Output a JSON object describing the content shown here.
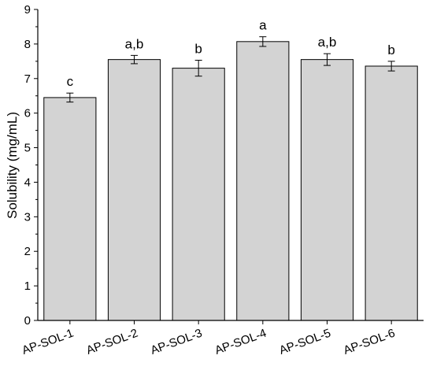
{
  "chart_data": {
    "type": "bar",
    "categories": [
      "AP-SOL-1",
      "AP-SOL-2",
      "AP-SOL-3",
      "AP-SOL-4",
      "AP-SOL-5",
      "AP-SOL-6"
    ],
    "values": [
      6.45,
      7.55,
      7.3,
      8.07,
      7.55,
      7.36
    ],
    "errors": [
      0.13,
      0.12,
      0.23,
      0.14,
      0.17,
      0.14
    ],
    "significance": [
      "c",
      "a,b",
      "b",
      "a",
      "a,b",
      "b"
    ],
    "title": "",
    "xlabel": "",
    "ylabel": "Solubility (mg/mL)",
    "ylim": [
      0,
      9
    ],
    "yticks": [
      "0",
      "1",
      "2",
      "3",
      "4",
      "5",
      "6",
      "7",
      "8",
      "9"
    ],
    "grid": false,
    "bar_color": "#d3d3d3"
  }
}
